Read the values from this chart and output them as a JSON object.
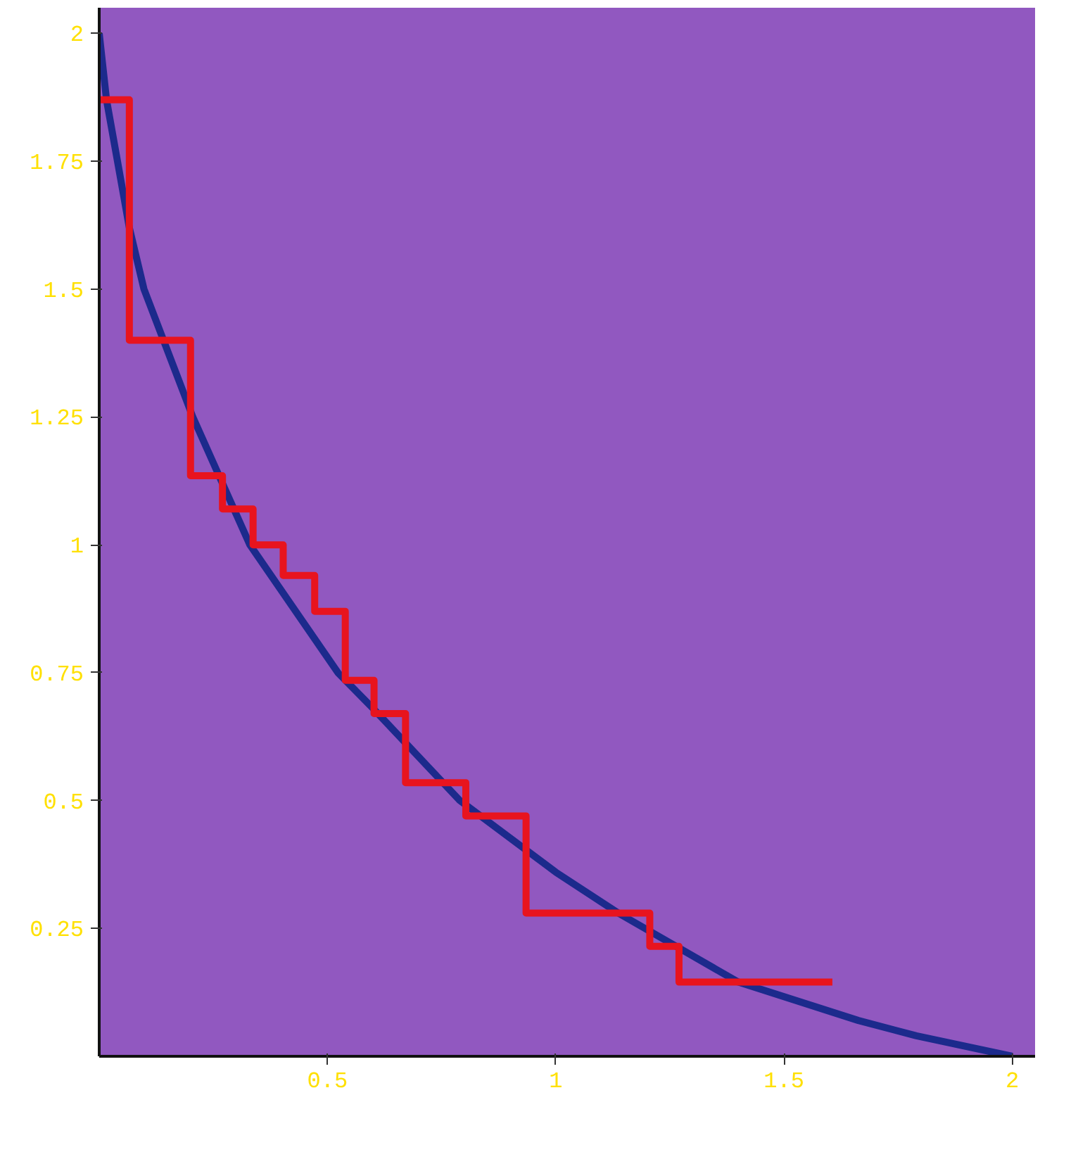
{
  "chart_data": {
    "type": "line",
    "xlim": [
      0,
      2.05
    ],
    "ylim": [
      0,
      2.05
    ],
    "xticks": [
      0.5,
      1,
      1.5,
      2
    ],
    "yticks": [
      0.25,
      0.5,
      0.75,
      1,
      1.25,
      1.5,
      1.75,
      2
    ],
    "grid": false,
    "marker": "none",
    "line_style": "solid",
    "series": [
      {
        "color": "#1c2a8c",
        "x": [
          0,
          0.016,
          0.066,
          0.098,
          0.205,
          0.33,
          0.523,
          0.6,
          0.79,
          1.0,
          1.137,
          1.4,
          1.663,
          1.79,
          2
        ],
        "values": [
          2,
          1.87,
          1.62,
          1.5,
          1.25,
          1.0,
          0.75,
          0.68,
          0.5,
          0.36,
          0.28,
          0.145,
          0.07,
          0.04,
          0
        ]
      },
      {
        "type": "step",
        "color": "#e8141e",
        "x": [
          0,
          0.066,
          0.2,
          0.27,
          0.337,
          0.403,
          0.472,
          0.539,
          0.602,
          0.671,
          0.803,
          0.935,
          1.206,
          1.27,
          1.606
        ],
        "values": [
          1.87,
          1.4,
          1.135,
          1.07,
          1.0,
          0.94,
          0.87,
          0.735,
          0.67,
          0.535,
          0.47,
          0.28,
          0.215,
          0.145,
          0.145
        ]
      }
    ]
  }
}
